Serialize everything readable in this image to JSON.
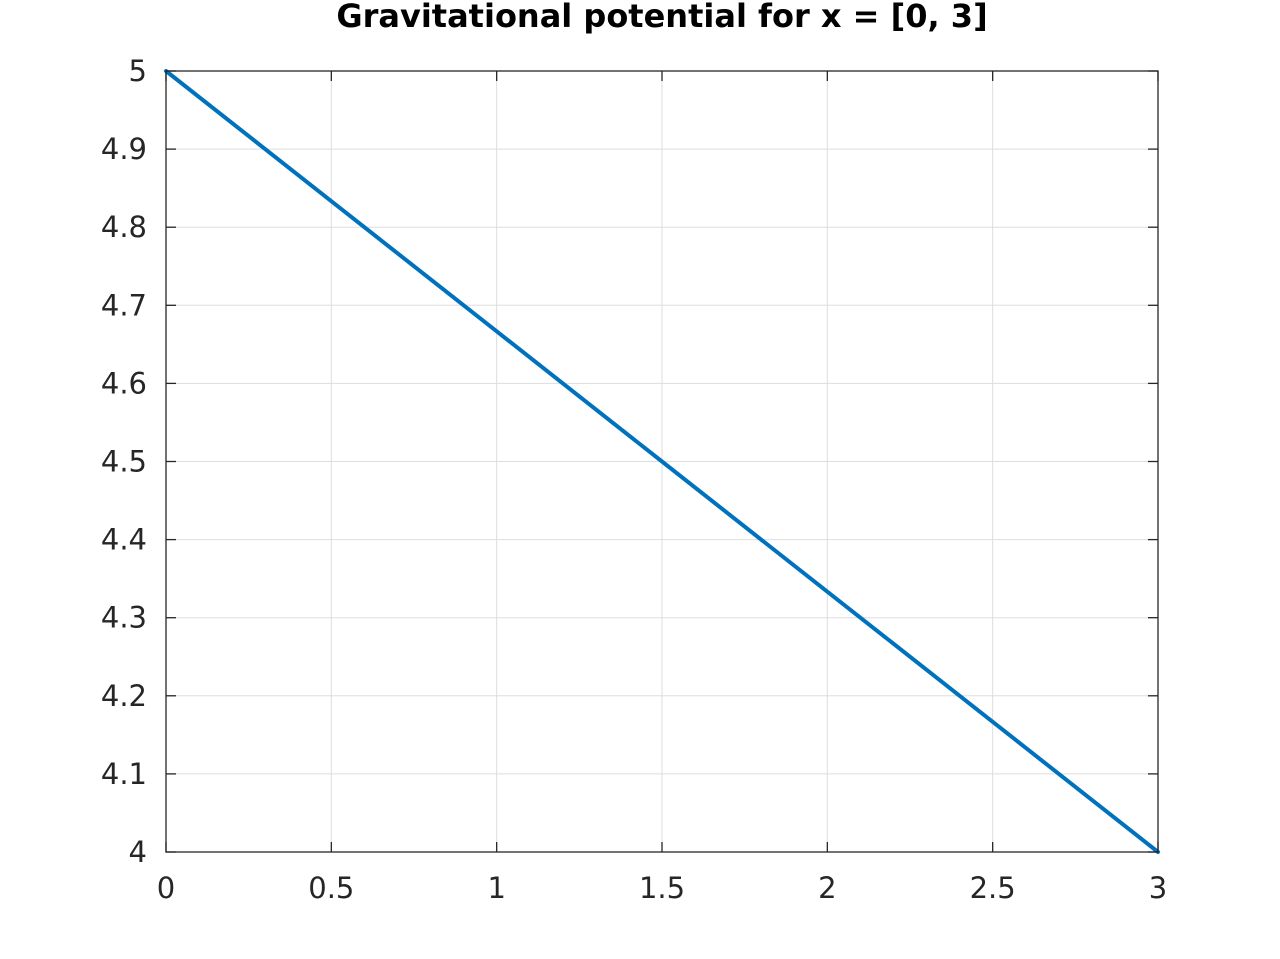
{
  "chart_data": {
    "type": "line",
    "title": "Gravitational potential for x = [0, 3]",
    "xlabel": "",
    "ylabel": "",
    "xlim": [
      0,
      3
    ],
    "ylim": [
      4,
      5
    ],
    "grid": true,
    "x_ticks": [
      0,
      0.5,
      1,
      1.5,
      2,
      2.5,
      3
    ],
    "x_tick_labels": [
      "0",
      "0.5",
      "1",
      "1.5",
      "2",
      "2.5",
      "3"
    ],
    "y_ticks": [
      4,
      4.1,
      4.2,
      4.3,
      4.4,
      4.5,
      4.6,
      4.7,
      4.8,
      4.9,
      5
    ],
    "y_tick_labels": [
      "4",
      "4.1",
      "4.2",
      "4.3",
      "4.4",
      "4.5",
      "4.6",
      "4.7",
      "4.8",
      "4.9",
      "5"
    ],
    "series": [
      {
        "color": "#0072bd",
        "x": [
          0,
          0.5,
          1,
          1.5,
          2,
          2.5,
          3
        ],
        "y": [
          5,
          4.8333,
          4.6667,
          4.5,
          4.3333,
          4.1667,
          4
        ]
      }
    ]
  }
}
